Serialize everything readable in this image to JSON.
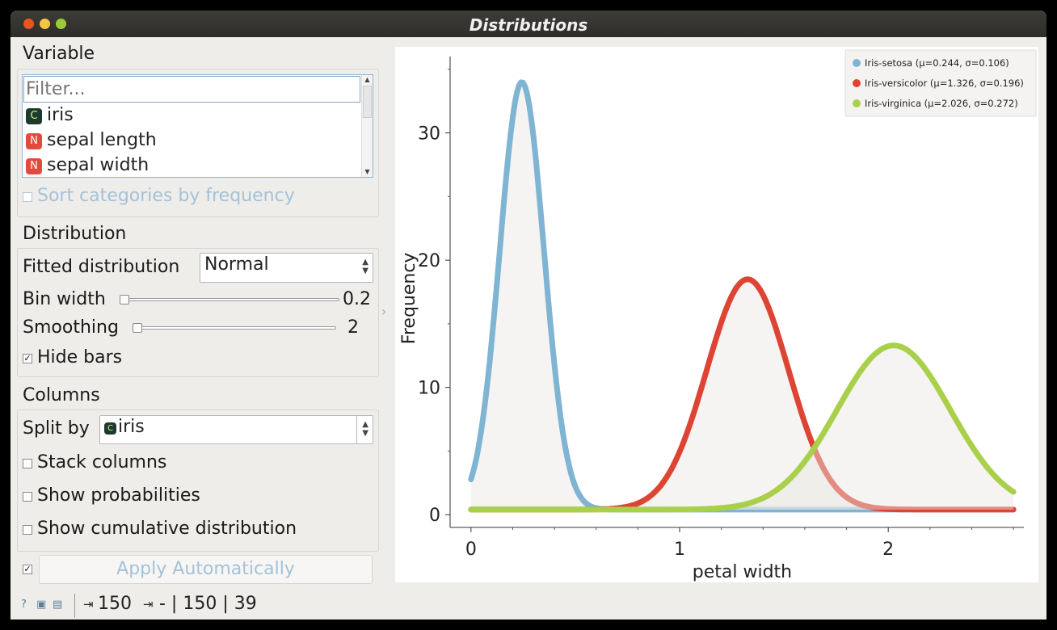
{
  "window": {
    "title": "Distributions",
    "colors": {
      "close": "#e95420",
      "minimize": "#f2c744",
      "maximize": "#9ccb3a"
    }
  },
  "variable": {
    "section_label": "Variable",
    "filter_placeholder": "Filter...",
    "items": [
      {
        "icon": "C",
        "icon_name": "categorical-icon",
        "label": "iris"
      },
      {
        "icon": "N",
        "icon_name": "numeric-icon",
        "label": "sepal length"
      },
      {
        "icon": "N",
        "icon_name": "numeric-icon",
        "label": "sepal width"
      }
    ],
    "sort_label": "Sort categories by frequency",
    "sort_checked": false
  },
  "distribution": {
    "section_label": "Distribution",
    "fitted_label": "Fitted distribution",
    "fitted_value": "Normal",
    "bin_width_label": "Bin width",
    "bin_width_value": "0.2",
    "smoothing_label": "Smoothing",
    "smoothing_value": "2",
    "hide_bars_label": "Hide bars",
    "hide_bars_checked": true
  },
  "columns": {
    "section_label": "Columns",
    "split_label": "Split by",
    "split_value": "iris",
    "stack_label": "Stack columns",
    "probabilities_label": "Show probabilities",
    "cumulative_label": "Show cumulative distribution"
  },
  "apply": {
    "label": "Apply Automatically",
    "checked": true
  },
  "status": {
    "input_count": "150",
    "output_text": "- | 150 | 39"
  },
  "chart_data": {
    "type": "line",
    "xlabel": "petal width",
    "ylabel": "Frequency",
    "xlim": [
      -0.1,
      2.65
    ],
    "ylim": [
      -1,
      36
    ],
    "x_ticks": [
      0,
      1,
      2
    ],
    "x_tick_labels": [
      "0",
      "1",
      "2"
    ],
    "y_ticks": [
      0,
      10,
      20,
      30
    ],
    "y_tick_labels": [
      "0",
      "10",
      "20",
      "30"
    ],
    "x_range": [
      0,
      2.6
    ],
    "legend_position": "top-right",
    "series": [
      {
        "name": "Iris-setosa (μ=0.244, σ=0.106)",
        "color": "#7fb4d3",
        "mu": 0.244,
        "sigma": 0.106,
        "peak": 34,
        "baseline": 0.4
      },
      {
        "name": "Iris-versicolor (μ=1.326, σ=0.196)",
        "color": "#dd4433",
        "mu": 1.326,
        "sigma": 0.196,
        "peak": 18.5,
        "baseline": 0.4
      },
      {
        "name": "Iris-virginica (μ=2.026, σ=0.272)",
        "color": "#a9d04a",
        "mu": 2.026,
        "sigma": 0.272,
        "peak": 13.3,
        "baseline": 0.4
      }
    ]
  }
}
